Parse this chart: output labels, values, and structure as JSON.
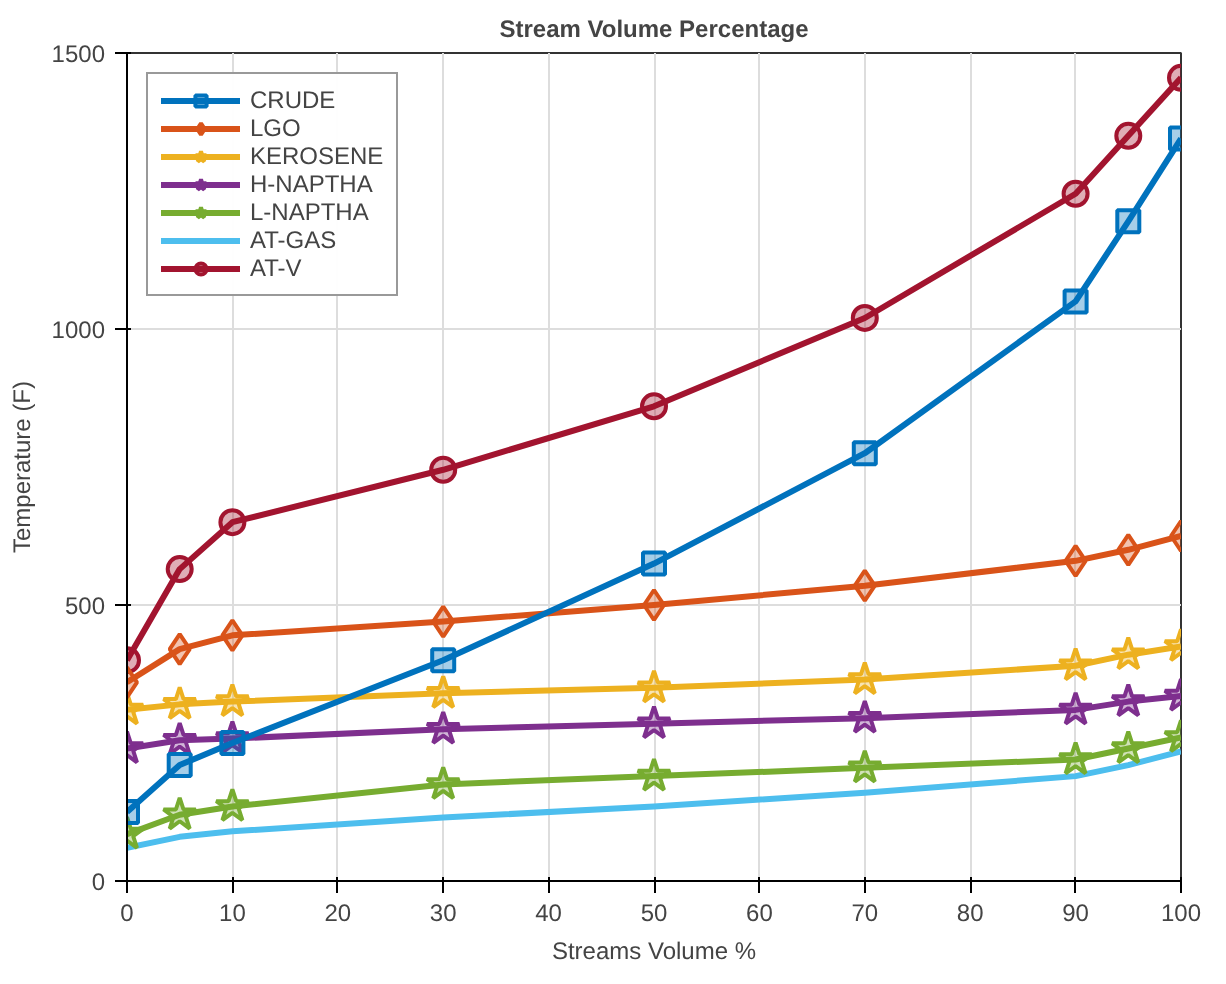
{
  "chart_data": {
    "type": "line",
    "title": "Stream Volume Percentage",
    "xlabel": "Streams Volume %",
    "ylabel": "Temperature (F)",
    "x": [
      0,
      5,
      10,
      30,
      50,
      70,
      90,
      95,
      100
    ],
    "xlim": [
      0,
      100
    ],
    "xticks": [
      0,
      10,
      20,
      30,
      40,
      50,
      60,
      70,
      80,
      90,
      100
    ],
    "ylim": [
      0,
      1500
    ],
    "yticks": [
      0,
      500,
      1000,
      1500
    ],
    "grid": true,
    "legend": "top left",
    "line_style": "solid",
    "series": [
      {
        "name": "CRUDE",
        "color": "#0072bd",
        "marker": "square",
        "values": [
          125,
          210,
          250,
          400,
          575,
          775,
          1050,
          1195,
          1345
        ]
      },
      {
        "name": "LGO",
        "color": "#d95319",
        "marker": "diamond",
        "values": [
          360,
          420,
          445,
          470,
          500,
          535,
          580,
          600,
          625
        ]
      },
      {
        "name": "KEROSENE",
        "color": "#edb120",
        "marker": "star",
        "values": [
          310,
          320,
          325,
          340,
          350,
          365,
          390,
          410,
          425
        ]
      },
      {
        "name": "H-NAPTHA",
        "color": "#7e2f8e",
        "marker": "star",
        "values": [
          240,
          255,
          258,
          275,
          285,
          295,
          310,
          325,
          335
        ]
      },
      {
        "name": "L-NAPTHA",
        "color": "#77ac30",
        "marker": "star",
        "values": [
          85,
          120,
          135,
          175,
          190,
          205,
          220,
          240,
          260
        ]
      },
      {
        "name": "AT-GAS",
        "color": "#4dbeee",
        "marker": "none",
        "values": [
          60,
          80,
          90,
          115,
          135,
          160,
          190,
          210,
          235
        ]
      },
      {
        "name": "AT-V",
        "color": "#a2142f",
        "marker": "circle",
        "values": [
          400,
          565,
          650,
          745,
          860,
          1020,
          1245,
          1350,
          1455
        ]
      }
    ]
  }
}
